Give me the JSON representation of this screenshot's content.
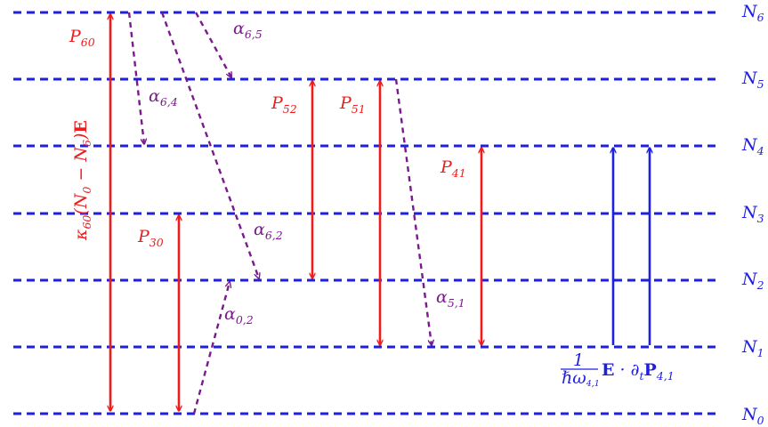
{
  "levels": [
    {
      "name": "N",
      "sub": "0"
    },
    {
      "name": "N",
      "sub": "1"
    },
    {
      "name": "N",
      "sub": "2"
    },
    {
      "name": "N",
      "sub": "3"
    },
    {
      "name": "N",
      "sub": "4"
    },
    {
      "name": "N",
      "sub": "5"
    },
    {
      "name": "N",
      "sub": "6"
    }
  ],
  "pumps": [
    {
      "name": "P",
      "sub": "60"
    },
    {
      "name": "P",
      "sub": "52"
    },
    {
      "name": "P",
      "sub": "51"
    },
    {
      "name": "P",
      "sub": "41"
    },
    {
      "name": "P",
      "sub": "30"
    }
  ],
  "decays": [
    {
      "name": "α",
      "sub": "6,5"
    },
    {
      "name": "α",
      "sub": "6,4"
    },
    {
      "name": "α",
      "sub": "6,2"
    },
    {
      "name": "α",
      "sub": "5,1"
    },
    {
      "name": "α",
      "sub": "0,2"
    }
  ],
  "kappa_label": {
    "pre": "κ",
    "sub": "60",
    "open": "(N",
    "sub0": "0",
    "minus": " − N",
    "sub6": "6",
    "close": ")",
    "bold": "E"
  },
  "coupling_label": {
    "num": "1",
    "den_pre": "ℏω",
    "den_sub": "4,1",
    "bold1": "E",
    "dot": " · ∂",
    "sub_t": "t",
    "bold2": "P",
    "sub_p": "4,1"
  },
  "colors": {
    "levels": "#1f1fe0",
    "pumps": "#ee1c1c",
    "decays": "#7a1a8c",
    "coupling": "#1f1fe0"
  }
}
